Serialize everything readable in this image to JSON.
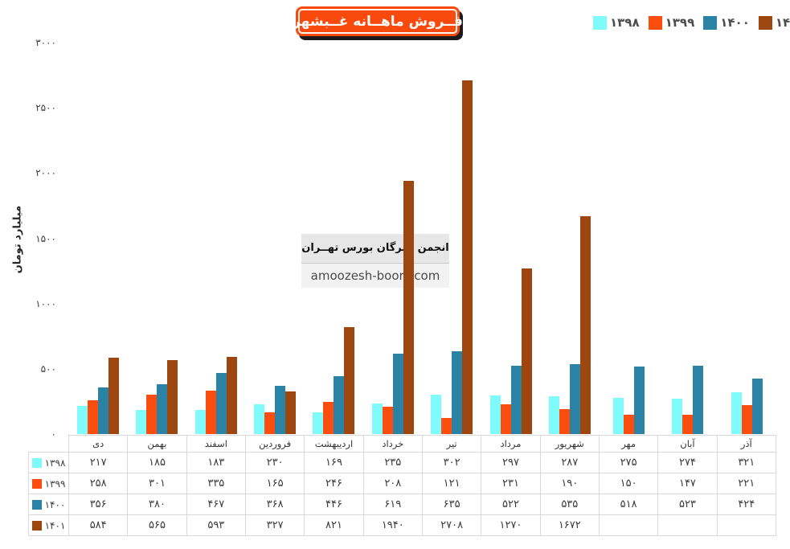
{
  "title": "فــروش ماهــانه غــبشهر",
  "watermark": {
    "line1": "انجمن خبرگان بورس تهــران",
    "line2": "amoozesh-boors.com"
  },
  "style": {
    "title_bg": "#f84a0c",
    "title_shadow": "#1b1b1b"
  },
  "chart_data": {
    "type": "bar",
    "title": "فــروش ماهــانه غــبشهر",
    "ylabel": "میلیارد تومان",
    "ylim": [
      0,
      3000
    ],
    "grid": false,
    "legend_position": "top-right",
    "yticks": [
      {
        "v": 0,
        "label": "۰"
      },
      {
        "v": 500,
        "label": "۵۰۰"
      },
      {
        "v": 1000,
        "label": "۱۰۰۰"
      },
      {
        "v": 1500,
        "label": "۱۵۰۰"
      },
      {
        "v": 2000,
        "label": "۲۰۰۰"
      },
      {
        "v": 2500,
        "label": "۲۵۰۰"
      },
      {
        "v": 3000,
        "label": "۳۰۰۰"
      }
    ],
    "categories": [
      "دی",
      "بهمن",
      "اسفند",
      "فروردین",
      "اردیبهشت",
      "خرداد",
      "تیر",
      "مرداد",
      "شهریور",
      "مهر",
      "آبان",
      "آذر"
    ],
    "series": [
      {
        "name": "۱۳۹۸",
        "color": "#80fbfb",
        "values": [
          217,
          185,
          183,
          230,
          169,
          235,
          302,
          297,
          287,
          275,
          274,
          321
        ],
        "labels": [
          "۲۱۷",
          "۱۸۵",
          "۱۸۳",
          "۲۳۰",
          "۱۶۹",
          "۲۳۵",
          "۳۰۲",
          "۲۹۷",
          "۲۸۷",
          "۲۷۵",
          "۲۷۴",
          "۳۲۱"
        ]
      },
      {
        "name": "۱۳۹۹",
        "color": "#fb4e0e",
        "values": [
          258,
          301,
          335,
          165,
          246,
          208,
          121,
          231,
          190,
          150,
          147,
          221
        ],
        "labels": [
          "۲۵۸",
          "۳۰۱",
          "۳۳۵",
          "۱۶۵",
          "۲۴۶",
          "۲۰۸",
          "۱۲۱",
          "۲۳۱",
          "۱۹۰",
          "۱۵۰",
          "۱۴۷",
          "۲۲۱"
        ]
      },
      {
        "name": "۱۴۰۰",
        "color": "#2a83a4",
        "values": [
          356,
          380,
          467,
          368,
          446,
          619,
          635,
          522,
          535,
          518,
          523,
          424
        ],
        "labels": [
          "۳۵۶",
          "۳۸۰",
          "۴۶۷",
          "۳۶۸",
          "۴۴۶",
          "۶۱۹",
          "۶۳۵",
          "۵۲۲",
          "۵۳۵",
          "۵۱۸",
          "۵۲۳",
          "۴۲۴"
        ]
      },
      {
        "name": "۱۴۰۱",
        "color": "#9e460f",
        "values": [
          584,
          565,
          593,
          327,
          821,
          1940,
          2708,
          1270,
          1672,
          null,
          null,
          null
        ],
        "labels": [
          "۵۸۴",
          "۵۶۵",
          "۵۹۳",
          "۳۲۷",
          "۸۲۱",
          "۱۹۴۰",
          "۲۷۰۸",
          "۱۲۷۰",
          "۱۶۷۲",
          "",
          "",
          ""
        ]
      }
    ]
  }
}
